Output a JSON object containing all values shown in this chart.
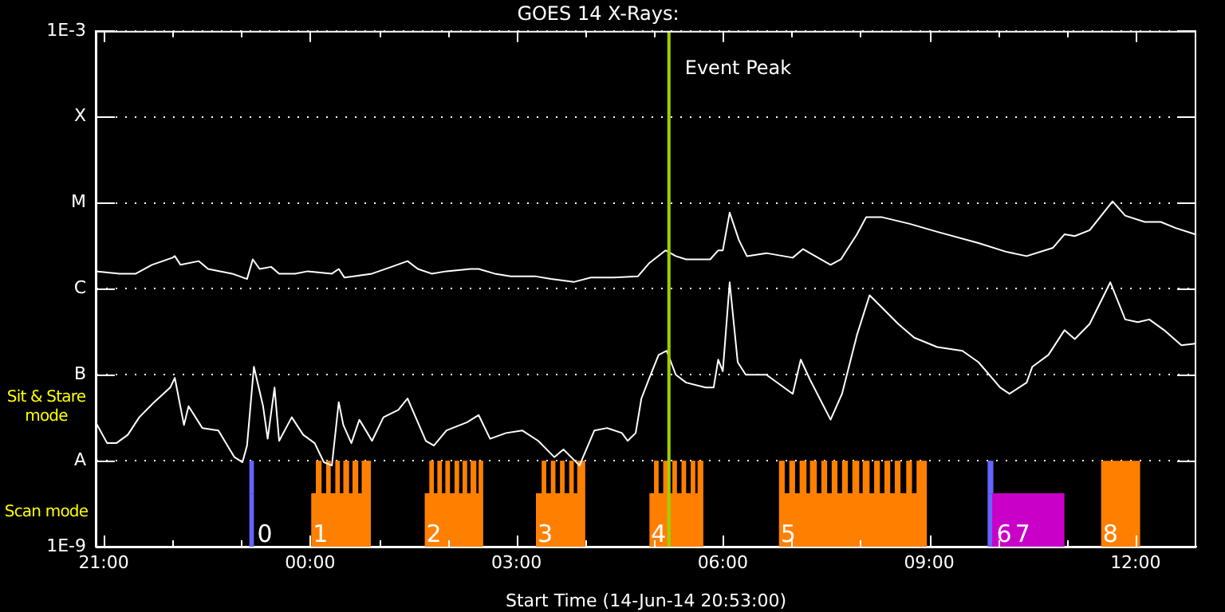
{
  "chart_data": {
    "type": "line",
    "title": "GOES 14 X-Rays:",
    "xlabel": "Start Time (14-Jun-14 20:53:00)",
    "log": true,
    "grid": "y",
    "marker": "none",
    "xlim": [
      "--06-14T20:53",
      "--06-15T12:53"
    ],
    "xticks": [
      {
        "value": "--06-14T21:00",
        "label": "21:00"
      },
      {
        "value": "--06-14T22:00",
        "label": null
      },
      {
        "value": "--06-14T23:00",
        "label": null
      },
      {
        "value": "--06-15T00:00",
        "label": "00:00"
      },
      {
        "value": "--06-15T01:00",
        "label": null
      },
      {
        "value": "--06-15T02:00",
        "label": null
      },
      {
        "value": "--06-15T03:00",
        "label": "03:00"
      },
      {
        "value": "--06-15T04:00",
        "label": null
      },
      {
        "value": "--06-15T05:00",
        "label": null
      },
      {
        "value": "--06-15T06:00",
        "label": "06:00"
      },
      {
        "value": "--06-15T07:00",
        "label": null
      },
      {
        "value": "--06-15T08:00",
        "label": null
      },
      {
        "value": "--06-15T09:00",
        "label": "09:00"
      },
      {
        "value": "--06-15T10:00",
        "label": null
      },
      {
        "value": "--06-15T11:00",
        "label": null
      },
      {
        "value": "--06-15T12:00",
        "label": "12:00"
      }
    ],
    "ylim": [
      1e-09,
      0.001
    ],
    "yticks": [
      {
        "value": 1e-09,
        "label": "1E-9"
      },
      {
        "value": 1e-08,
        "label": "A"
      },
      {
        "value": 1e-07,
        "label": "B"
      },
      {
        "value": 1e-06,
        "label": "C"
      },
      {
        "value": 1e-05,
        "label": "M"
      },
      {
        "value": 0.0001,
        "label": "X"
      },
      {
        "value": 0.001,
        "label": "1E-3"
      }
    ],
    "series": [
      {
        "color": "#ffffff",
        "x": [
          "--06-14T20:53",
          "--06-14T21:14",
          "--06-14T21:28",
          "--06-14T21:42",
          "--06-14T22:00",
          "--06-14T22:02",
          "--06-14T22:07",
          "--06-14T22:23",
          "--06-14T22:31",
          "--06-14T22:52",
          "--06-14T23:05",
          "--06-14T23:10",
          "--06-14T23:16",
          "--06-14T23:26",
          "--06-14T23:33",
          "--06-14T23:47",
          "--06-14T23:58",
          "--06-15T00:19",
          "--06-15T00:25",
          "--06-15T00:30",
          "--06-15T00:38",
          "--06-15T00:54",
          "--06-15T01:11",
          "--06-15T01:25",
          "--06-15T01:34",
          "--06-15T01:46",
          "--06-15T01:59",
          "--06-15T02:20",
          "--06-15T02:27",
          "--06-15T02:41",
          "--06-15T02:55",
          "--06-15T03:16",
          "--06-15T03:30",
          "--06-15T03:50",
          "--06-15T04:05",
          "--06-15T04:25",
          "--06-15T04:46",
          "--06-15T04:56",
          "--06-15T05:10",
          "--06-15T05:19",
          "--06-15T05:28",
          "--06-15T05:49",
          "--06-15T05:56",
          "--06-15T06:00",
          "--06-15T06:06",
          "--06-15T06:14",
          "--06-15T06:21",
          "--06-15T06:38",
          "--06-15T07:01",
          "--06-15T07:10",
          "--06-15T07:16",
          "--06-15T07:34",
          "--06-15T07:43",
          "--06-15T07:57",
          "--06-15T08:05",
          "--06-15T08:19",
          "--06-15T08:43",
          "--06-15T09:07",
          "--06-15T09:43",
          "--06-15T10:07",
          "--06-15T10:25",
          "--06-15T10:48",
          "--06-15T10:58",
          "--06-15T11:07",
          "--06-15T11:20",
          "--06-15T11:40",
          "--06-15T11:51",
          "--06-15T12:08",
          "--06-15T12:22",
          "--06-15T12:35",
          "--06-15T12:52"
        ],
        "values": [
          1.6e-06,
          1.5e-06,
          1.5e-06,
          1.9e-06,
          2.3e-06,
          2.4e-06,
          1.9e-06,
          2.1e-06,
          1.7e-06,
          1.5e-06,
          1.3e-06,
          2.2e-06,
          1.7e-06,
          1.8e-06,
          1.5e-06,
          1.5e-06,
          1.6e-06,
          1.5e-06,
          1.7e-06,
          1.35e-06,
          1.4e-06,
          1.5e-06,
          1.8e-06,
          2.1e-06,
          1.7e-06,
          1.5e-06,
          1.6e-06,
          1.7e-06,
          1.7e-06,
          1.5e-06,
          1.4e-06,
          1.4e-06,
          1.3e-06,
          1.2e-06,
          1.35e-06,
          1.35e-06,
          1.4e-06,
          2e-06,
          2.8e-06,
          2.4e-06,
          2.2e-06,
          2.2e-06,
          2.8e-06,
          2.8e-06,
          7.7e-06,
          3.7e-06,
          2.4e-06,
          2.6e-06,
          2.3e-06,
          2.9e-06,
          2.6e-06,
          1.9e-06,
          2.2e-06,
          4.3e-06,
          6.8e-06,
          6.8e-06,
          5.7e-06,
          4.6e-06,
          3.4e-06,
          2.7e-06,
          2.4e-06,
          3e-06,
          4.3e-06,
          4.1e-06,
          4.8e-06,
          1.04e-05,
          7.1e-06,
          6e-06,
          6e-06,
          5.1e-06,
          4.3e-06
        ]
      },
      {
        "color": "#ffffff",
        "x": [
          "--06-14T20:53",
          "--06-14T21:03",
          "--06-14T21:11",
          "--06-14T21:21",
          "--06-14T21:31",
          "--06-14T21:44",
          "--06-14T21:58",
          "--06-14T22:02",
          "--06-14T22:10",
          "--06-14T22:14",
          "--06-14T22:26",
          "--06-14T22:40",
          "--06-14T22:54",
          "--06-14T23:01",
          "--06-14T23:05",
          "--06-14T23:11",
          "--06-14T23:19",
          "--06-14T23:23",
          "--06-14T23:29",
          "--06-14T23:33",
          "--06-14T23:44",
          "--06-14T23:54",
          "--06-15T00:04",
          "--06-15T00:12",
          "--06-15T00:19",
          "--06-15T00:25",
          "--06-15T00:29",
          "--06-15T00:36",
          "--06-15T00:43",
          "--06-15T00:50",
          "--06-15T00:54",
          "--06-15T01:04",
          "--06-15T01:17",
          "--06-15T01:25",
          "--06-15T01:41",
          "--06-15T01:48",
          "--06-15T01:59",
          "--06-15T02:17",
          "--06-15T02:27",
          "--06-15T02:37",
          "--06-15T02:51",
          "--06-15T03:05",
          "--06-15T03:19",
          "--06-15T03:33",
          "--06-15T03:41",
          "--06-15T03:55",
          "--06-15T04:08",
          "--06-15T04:19",
          "--06-15T04:32",
          "--06-15T04:37",
          "--06-15T04:44",
          "--06-15T04:49",
          "--06-15T04:56",
          "--06-15T05:04",
          "--06-15T05:11",
          "--06-15T05:19",
          "--06-15T05:28",
          "--06-15T05:45",
          "--06-15T05:52",
          "--06-15T05:56",
          "--06-15T06:00",
          "--06-15T06:06",
          "--06-15T06:13",
          "--06-15T06:20",
          "--06-15T06:38",
          "--06-15T07:01",
          "--06-15T07:08",
          "--06-15T07:16",
          "--06-15T07:34",
          "--06-15T07:44",
          "--06-15T07:57",
          "--06-15T08:08",
          "--06-15T08:19",
          "--06-15T08:33",
          "--06-15T08:47",
          "--06-15T09:07",
          "--06-15T09:29",
          "--06-15T09:43",
          "--06-15T10:02",
          "--06-15T10:10",
          "--06-15T10:25",
          "--06-15T10:30",
          "--06-15T10:44",
          "--06-15T10:58",
          "--06-15T11:07",
          "--06-15T11:20",
          "--06-15T11:38",
          "--06-15T11:51",
          "--06-15T12:02",
          "--06-15T12:12",
          "--06-15T12:25",
          "--06-15T12:40",
          "--06-15T12:52"
        ],
        "values": [
          2.8e-08,
          1.6e-08,
          1.6e-08,
          2e-08,
          3.2e-08,
          4.8e-08,
          7.1e-08,
          9.2e-08,
          2.6e-08,
          4.3e-08,
          2.4e-08,
          2.25e-08,
          1.1e-08,
          9.6e-09,
          1.5e-08,
          1.24e-07,
          4.3e-08,
          1.8e-08,
          7.1e-08,
          1.7e-08,
          3.2e-08,
          2e-08,
          1.6e-08,
          9.6e-09,
          8.8e-09,
          4.8e-08,
          2.6e-08,
          1.6e-08,
          3e-08,
          2.1e-08,
          1.7e-08,
          3.2e-08,
          3.9e-08,
          5.3e-08,
          1.7e-08,
          1.5e-08,
          2.25e-08,
          2.8e-08,
          3.4e-08,
          1.8e-08,
          2.1e-08,
          2.25e-08,
          1.7e-08,
          1.1e-08,
          1.35e-08,
          8.8e-09,
          2.25e-08,
          2.4e-08,
          2.1e-08,
          1.7e-08,
          2.1e-08,
          5.3e-08,
          9.2e-08,
          1.7e-07,
          1.9e-07,
          1e-07,
          8.1e-08,
          7.1e-08,
          7.1e-08,
          1.5e-07,
          1.1e-07,
          1.19e-06,
          1.4e-07,
          1e-07,
          1e-07,
          6e-08,
          1.5e-07,
          8.8e-08,
          3e-08,
          6e-08,
          2.9e-07,
          8.4e-07,
          6e-07,
          3.9e-07,
          2.7e-07,
          2.1e-07,
          1.9e-07,
          1.4e-07,
          7.1e-08,
          6e-08,
          8.1e-08,
          1.24e-07,
          1.7e-07,
          3.3e-07,
          2.6e-07,
          3.9e-07,
          1.19e-06,
          4.4e-07,
          4.1e-07,
          4.4e-07,
          3.3e-07,
          2.2e-07,
          2.3e-07
        ]
      }
    ],
    "ref_lines": [
      {
        "axis": "x",
        "value": "--06-15T05:13",
        "label": "Event Peak",
        "color": "#a0d000"
      }
    ],
    "bands": [
      {
        "axis": "x",
        "from": "--06-14T23:07",
        "to": "--06-14T23:11",
        "label": "0",
        "color": "#6464ff"
      },
      {
        "axis": "x",
        "from": "--06-14T23:07",
        "to": "--06-14T23:11",
        "label": null,
        "color": "#6464ff"
      },
      {
        "axis": "x",
        "from": "--06-15T00:01",
        "to": "--06-15T00:53",
        "label": "1",
        "color": "#ff8000"
      },
      {
        "axis": "x",
        "from": "--06-15T00:05",
        "to": "--06-15T00:10",
        "label": null,
        "color": "#ff8000"
      },
      {
        "axis": "x",
        "from": "--06-15T00:14",
        "to": "--06-15T00:18",
        "label": null,
        "color": "#ff8000"
      },
      {
        "axis": "x",
        "from": "--06-15T00:22",
        "to": "--06-15T00:26",
        "label": null,
        "color": "#ff8000"
      },
      {
        "axis": "x",
        "from": "--06-15T00:29",
        "to": "--06-15T00:34",
        "label": null,
        "color": "#ff8000"
      },
      {
        "axis": "x",
        "from": "--06-15T00:37",
        "to": "--06-15T00:42",
        "label": null,
        "color": "#ff8000"
      },
      {
        "axis": "x",
        "from": "--06-15T00:45",
        "to": "--06-15T00:53",
        "label": null,
        "color": "#ff8000"
      },
      {
        "axis": "x",
        "from": "--06-15T01:40",
        "to": "--06-15T02:31",
        "label": "2",
        "color": "#ff8000"
      },
      {
        "axis": "x",
        "from": "--06-15T01:44",
        "to": "--06-15T01:48",
        "label": null,
        "color": "#ff8000"
      },
      {
        "axis": "x",
        "from": "--06-15T01:51",
        "to": "--06-15T01:55",
        "label": null,
        "color": "#ff8000"
      },
      {
        "axis": "x",
        "from": "--06-15T01:58",
        "to": "--06-15T02:02",
        "label": null,
        "color": "#ff8000"
      },
      {
        "axis": "x",
        "from": "--06-15T02:06",
        "to": "--06-15T02:10",
        "label": null,
        "color": "#ff8000"
      },
      {
        "axis": "x",
        "from": "--06-15T02:13",
        "to": "--06-15T02:17",
        "label": null,
        "color": "#ff8000"
      },
      {
        "axis": "x",
        "from": "--06-15T02:20",
        "to": "--06-15T02:25",
        "label": null,
        "color": "#ff8000"
      },
      {
        "axis": "x",
        "from": "--06-15T02:27",
        "to": "--06-15T02:31",
        "label": null,
        "color": "#ff8000"
      },
      {
        "axis": "x",
        "from": "--06-15T03:17",
        "to": "--06-15T04:00",
        "label": "3",
        "color": "#ff8000"
      },
      {
        "axis": "x",
        "from": "--06-15T03:22",
        "to": "--06-15T03:26",
        "label": null,
        "color": "#ff8000"
      },
      {
        "axis": "x",
        "from": "--06-15T03:30",
        "to": "--06-15T03:34",
        "label": null,
        "color": "#ff8000"
      },
      {
        "axis": "x",
        "from": "--06-15T03:38",
        "to": "--06-15T03:42",
        "label": null,
        "color": "#ff8000"
      },
      {
        "axis": "x",
        "from": "--06-15T03:46",
        "to": "--06-15T03:50",
        "label": null,
        "color": "#ff8000"
      },
      {
        "axis": "x",
        "from": "--06-15T03:53",
        "to": "--06-15T04:00",
        "label": null,
        "color": "#ff8000"
      },
      {
        "axis": "x",
        "from": "--06-15T04:56",
        "to": "--06-15T05:43",
        "label": "4",
        "color": "#ff8000"
      },
      {
        "axis": "x",
        "from": "--06-15T05:00",
        "to": "--06-15T05:04",
        "label": null,
        "color": "#ff8000"
      },
      {
        "axis": "x",
        "from": "--06-15T05:08",
        "to": "--06-15T05:13",
        "label": null,
        "color": "#ff8000"
      },
      {
        "axis": "x",
        "from": "--06-15T05:16",
        "to": "--06-15T05:20",
        "label": null,
        "color": "#ff8000"
      },
      {
        "axis": "x",
        "from": "--06-15T05:24",
        "to": "--06-15T05:28",
        "label": null,
        "color": "#ff8000"
      },
      {
        "axis": "x",
        "from": "--06-15T05:32",
        "to": "--06-15T05:36",
        "label": null,
        "color": "#ff8000"
      },
      {
        "axis": "x",
        "from": "--06-15T05:38",
        "to": "--06-15T05:43",
        "label": null,
        "color": "#ff8000"
      },
      {
        "axis": "x",
        "from": "--06-15T06:49",
        "to": "--06-15T08:58",
        "label": "5",
        "color": "#ff8000"
      },
      {
        "axis": "x",
        "from": "--06-15T06:49",
        "to": "--06-15T06:54",
        "label": null,
        "color": "#ff8000"
      },
      {
        "axis": "x",
        "from": "--06-15T06:58",
        "to": "--06-15T07:03",
        "label": null,
        "color": "#ff8000"
      },
      {
        "axis": "x",
        "from": "--06-15T07:07",
        "to": "--06-15T07:13",
        "label": null,
        "color": "#ff8000"
      },
      {
        "axis": "x",
        "from": "--06-15T07:16",
        "to": "--06-15T07:22",
        "label": null,
        "color": "#ff8000"
      },
      {
        "axis": "x",
        "from": "--06-15T07:26",
        "to": "--06-15T07:31",
        "label": null,
        "color": "#ff8000"
      },
      {
        "axis": "x",
        "from": "--06-15T07:35",
        "to": "--06-15T07:40",
        "label": null,
        "color": "#ff8000"
      },
      {
        "axis": "x",
        "from": "--06-15T07:44",
        "to": "--06-15T07:49",
        "label": null,
        "color": "#ff8000"
      },
      {
        "axis": "x",
        "from": "--06-15T07:53",
        "to": "--06-15T07:59",
        "label": null,
        "color": "#ff8000"
      },
      {
        "axis": "x",
        "from": "--06-15T08:02",
        "to": "--06-15T08:08",
        "label": null,
        "color": "#ff8000"
      },
      {
        "axis": "x",
        "from": "--06-15T08:12",
        "to": "--06-15T08:17",
        "label": null,
        "color": "#ff8000"
      },
      {
        "axis": "x",
        "from": "--06-15T08:21",
        "to": "--06-15T08:26",
        "label": null,
        "color": "#ff8000"
      },
      {
        "axis": "x",
        "from": "--06-15T08:30",
        "to": "--06-15T08:35",
        "label": null,
        "color": "#ff8000"
      },
      {
        "axis": "x",
        "from": "--06-15T08:40",
        "to": "--06-15T08:45",
        "label": null,
        "color": "#ff8000"
      },
      {
        "axis": "x",
        "from": "--06-15T08:49",
        "to": "--06-15T08:58",
        "label": null,
        "color": "#ff8000"
      },
      {
        "axis": "x",
        "from": "--06-15T09:51",
        "to": "--06-15T09:56",
        "label": "6",
        "color": "#6464ff"
      },
      {
        "axis": "x",
        "from": "--06-15T09:51",
        "to": "--06-15T09:56",
        "label": null,
        "color": "#6464ff"
      },
      {
        "axis": "x",
        "from": "--06-15T09:55",
        "to": "--06-15T10:58",
        "label": "7",
        "color": "#c800c8"
      },
      {
        "axis": "x",
        "from": "--06-15T11:30",
        "to": "--06-15T12:04",
        "label": "8",
        "color": "#ff8000"
      },
      {
        "axis": "x",
        "from": "--06-15T11:30",
        "to": "--06-15T12:04",
        "label": null,
        "color": "#ff8000"
      }
    ],
    "annotations": [
      "Sit & Stare mode",
      "Scan mode"
    ]
  }
}
